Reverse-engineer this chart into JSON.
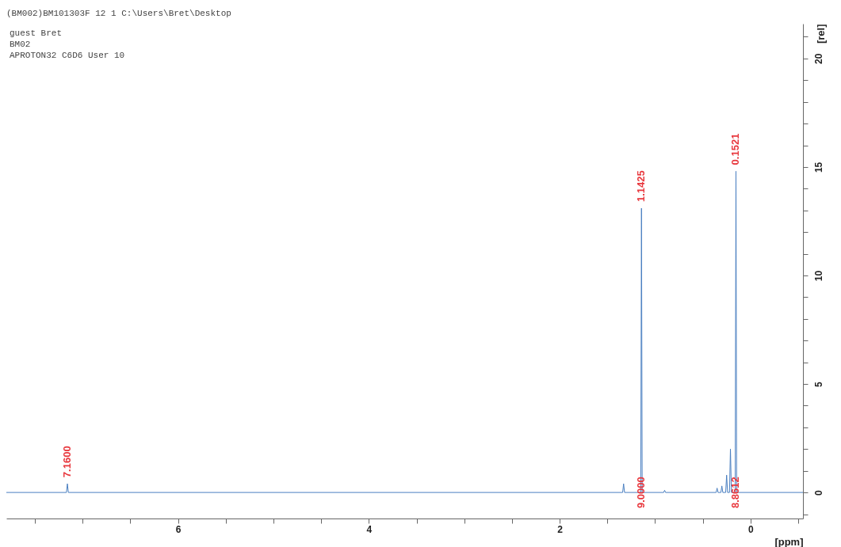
{
  "chart_data": {
    "type": "line",
    "title": "(BM002)BM101303F  12  1  C:\\Users\\Bret\\Desktop",
    "xlabel": "[ppm]",
    "ylabel": "[rel]",
    "xlim": [
      7.8,
      -0.55
    ],
    "ylim": [
      -1.2,
      21.6
    ],
    "xticks": [
      {
        "value": 7.5,
        "label": null
      },
      {
        "value": 7,
        "label": null
      },
      {
        "value": 6.5,
        "label": null
      },
      6,
      {
        "value": 5.5,
        "label": null
      },
      {
        "value": 5,
        "label": null
      },
      {
        "value": 4.5,
        "label": null
      },
      4,
      {
        "value": 3.5,
        "label": null
      },
      {
        "value": 3,
        "label": null
      },
      {
        "value": 2.5,
        "label": null
      },
      2,
      {
        "value": 1.5,
        "label": null
      },
      {
        "value": 1,
        "label": null
      },
      {
        "value": 0.5,
        "label": null
      },
      0,
      {
        "value": -0.5,
        "label": null
      }
    ],
    "yticks": [
      {
        "value": -1,
        "label": null
      },
      0,
      {
        "value": 1,
        "label": null
      },
      {
        "value": 2,
        "label": null
      },
      {
        "value": 3,
        "label": null
      },
      {
        "value": 4,
        "label": null
      },
      5,
      {
        "value": 6,
        "label": null
      },
      {
        "value": 7,
        "label": null
      },
      {
        "value": 8,
        "label": null
      },
      {
        "value": 9,
        "label": null
      },
      10,
      {
        "value": 11,
        "label": null
      },
      {
        "value": 12,
        "label": null
      },
      {
        "value": 13,
        "label": null
      },
      {
        "value": 14,
        "label": null
      },
      15,
      {
        "value": 16,
        "label": null
      },
      {
        "value": 17,
        "label": null
      },
      {
        "value": 18,
        "label": null
      },
      {
        "value": 19,
        "label": null
      },
      20,
      {
        "value": 21,
        "label": null
      }
    ],
    "grid": false,
    "marker": "none",
    "line_style": "solid",
    "series": [
      {
        "color": "#4a7fc1",
        "x": [
          7.8,
          7.17,
          7.16,
          7.15,
          1.34,
          1.33,
          1.32,
          1.15,
          1.1425,
          1.135,
          0.91,
          0.9,
          0.89,
          0.36,
          0.35,
          0.34,
          0.31,
          0.3,
          0.29,
          0.26,
          0.25,
          0.24,
          0.22,
          0.21,
          0.2,
          0.16,
          0.1521,
          0.145,
          -0.55
        ],
        "values": [
          0,
          0,
          0.4,
          0,
          0,
          0.4,
          0,
          0,
          13.1,
          0,
          0,
          0.1,
          0,
          0,
          0.2,
          0,
          0,
          0.3,
          0,
          0,
          0.8,
          0,
          0,
          2.0,
          0,
          0,
          14.8,
          0,
          0
        ]
      }
    ],
    "annotations": [
      "guest Bret",
      "BM02",
      "APROTON32 C6D6 User 10",
      {
        "text": "7.1600",
        "x": 7.16,
        "y": 0.4
      },
      {
        "text": "1.1425",
        "x": 1.1425,
        "y": 13.1
      },
      {
        "text": "0.1521",
        "x": 0.1521,
        "y": 14.8
      },
      {
        "text": "9.0000",
        "x": 1.1425,
        "y": 0
      },
      {
        "text": "8.8612",
        "x": 0.1521,
        "y": 0
      }
    ]
  }
}
